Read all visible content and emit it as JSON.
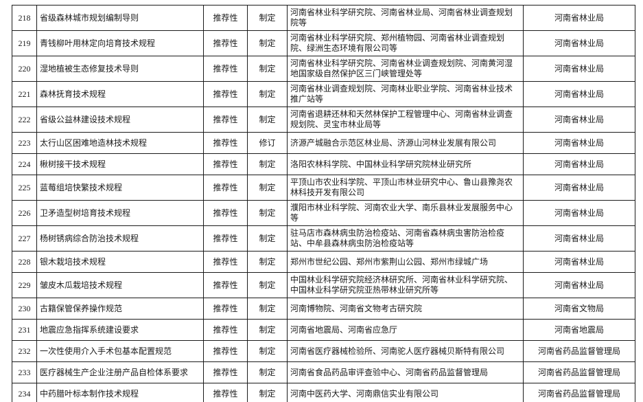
{
  "colors": {
    "background": "#ffffff",
    "border": "#1a1a1a",
    "text": "#1a1a1a"
  },
  "table": {
    "rows": [
      {
        "num": "218",
        "title": "省级森林城市规划编制导则",
        "nature": "推荐性",
        "type": "制定",
        "orgs": "河南省林业科学研究院、河南省林业局、河南省林业调查规划院等",
        "dept": "河南省林业局"
      },
      {
        "num": "219",
        "title": "青钱柳叶用林定向培育技术规程",
        "nature": "推荐性",
        "type": "制定",
        "orgs": "河南省林业科学研究院、郑州植物园、河南省林业调查规划院、绿洲生态环境有限公司等",
        "dept": "河南省林业局"
      },
      {
        "num": "220",
        "title": "湿地植被生态修复技术导则",
        "nature": "推荐性",
        "type": "制定",
        "orgs": "河南省林业科学研究院、河南省林业调查规划院、河南黄河湿地国家级自然保护区三门峡管理处等",
        "dept": "河南省林业局"
      },
      {
        "num": "221",
        "title": "森林抚育技术规程",
        "nature": "推荐性",
        "type": "制定",
        "orgs": "河南省林业调查规划院、河南林业职业学院、河南省林业技术推广站等",
        "dept": "河南省林业局"
      },
      {
        "num": "222",
        "title": "省级公益林建设技术规程",
        "nature": "推荐性",
        "type": "制定",
        "orgs": "河南省退耕还林和天然林保护工程管理中心、河南省林业调查规划院、灵宝市林业局等",
        "dept": "河南省林业局"
      },
      {
        "num": "223",
        "title": "太行山区困难地造林技术规程",
        "nature": "推荐性",
        "type": "修订",
        "orgs": "济源产城融合示范区林业局、济源山河林业发展有限公司",
        "dept": "河南省林业局"
      },
      {
        "num": "224",
        "title": "楸树接干技术规程",
        "nature": "推荐性",
        "type": "制定",
        "orgs": "洛阳农林科学院、中国林业科学研究院林业研究所",
        "dept": "河南省林业局"
      },
      {
        "num": "225",
        "title": "蓝莓组培快繁技术规程",
        "nature": "推荐性",
        "type": "制定",
        "orgs": "平顶山市农业科学院、平顶山市林业研究中心、鲁山县豫尧农林科技开发有限公司",
        "dept": "河南省林业局"
      },
      {
        "num": "226",
        "title": "卫矛造型树培育技术规程",
        "nature": "推荐性",
        "type": "制定",
        "orgs": "濮阳市林业科学院、河南农业大学、南乐县林业发展服务中心等",
        "dept": "河南省林业局"
      },
      {
        "num": "227",
        "title": "杨树锈病综合防治技术规程",
        "nature": "推荐性",
        "type": "制定",
        "orgs": "驻马店市森林病虫防治检疫站、河南省森林病虫害防治检疫站、中牟县森林病虫防治检疫站等",
        "dept": "河南省林业局"
      },
      {
        "num": "228",
        "title": "银木栽培技术规程",
        "nature": "推荐性",
        "type": "制定",
        "orgs": "郑州市世纪公园、郑州市紫荆山公园、郑州市绿城广场",
        "dept": "河南省林业局"
      },
      {
        "num": "229",
        "title": "皱皮木瓜栽培技术规程",
        "nature": "推荐性",
        "type": "制定",
        "orgs": "中国林业科学研究院经济林研究所、河南省林业科学研究院、中国林业科学研究院亚热带林业研究所等",
        "dept": "河南省林业局"
      },
      {
        "num": "230",
        "title": "古籍保管保养操作规范",
        "nature": "推荐性",
        "type": "制定",
        "orgs": "河南博物院、河南省文物考古研究院",
        "dept": "河南省文物局"
      },
      {
        "num": "231",
        "title": "地震应急指挥系统建设要求",
        "nature": "推荐性",
        "type": "制定",
        "orgs": "河南省地震局、河南省应急厅",
        "dept": "河南省地震局"
      },
      {
        "num": "232",
        "title": "一次性使用介入手术包基本配置规范",
        "nature": "推荐性",
        "type": "制定",
        "orgs": "河南省医疗器械检验所、河南驼人医疗器械贝斯特有限公司",
        "dept": "河南省药品监督管理局"
      },
      {
        "num": "233",
        "title": "医疗器械生产企业注册产品自检体系要求",
        "nature": "推荐性",
        "type": "制定",
        "orgs": "河南省食品药品审评查验中心、河南省药品监督管理局",
        "dept": "河南省药品监督管理局"
      },
      {
        "num": "234",
        "title": "中药腊叶标本制作技术规程",
        "nature": "推荐性",
        "type": "制定",
        "orgs": "河南中医药大学、河南鼎信实业有限公司",
        "dept": "河南省药品监督管理局"
      }
    ]
  }
}
